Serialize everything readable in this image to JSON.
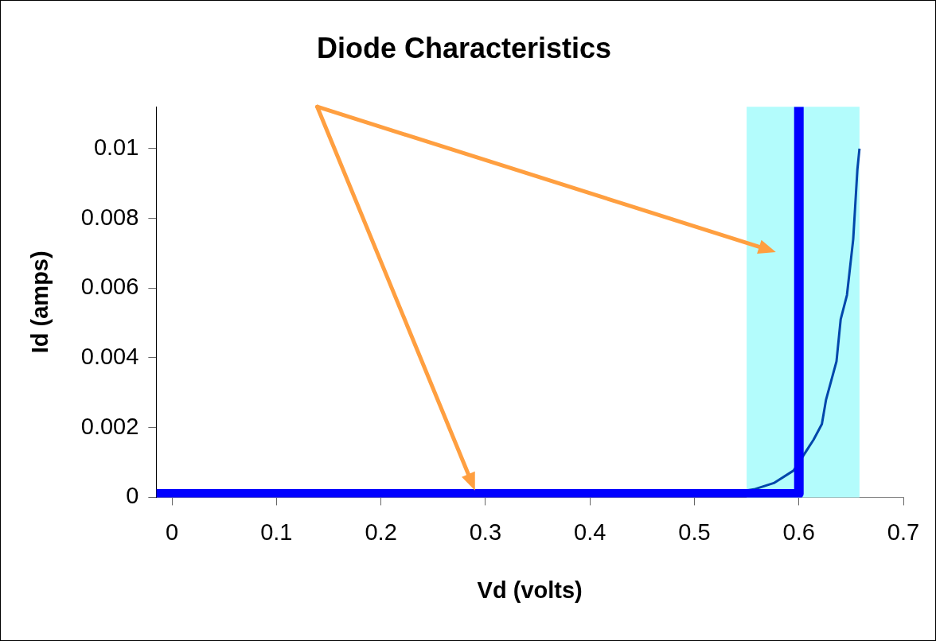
{
  "chart_data": {
    "type": "line",
    "title": "Diode Characteristics",
    "xlabel": "Vd (volts)",
    "ylabel": "Id (amps)",
    "series": [
      {
        "color": "#0000ff",
        "x": [
          -0.015,
          0.6,
          0.6
        ],
        "values": [
          0.0001,
          0.0001,
          0.0112
        ]
      },
      {
        "color": "#0047ab",
        "x": [
          0.53,
          0.557,
          0.576,
          0.595,
          0.614,
          0.622,
          0.626,
          0.636,
          0.64,
          0.646,
          0.652,
          0.656,
          0.658
        ],
        "values": [
          0.0001,
          0.00023,
          0.00041,
          0.00077,
          0.00165,
          0.0021,
          0.0028,
          0.0039,
          0.0051,
          0.0058,
          0.0074,
          0.0094,
          0.01
        ]
      }
    ],
    "bands": [
      {
        "axis": "x",
        "from": 0.55,
        "to": 0.658,
        "color": "#b3fcfc"
      }
    ],
    "xlim": [
      -0.015,
      0.7
    ],
    "xticks": [
      0,
      0.1,
      0.2,
      0.3,
      0.4,
      0.5,
      0.6,
      0.7
    ],
    "ylim": [
      0,
      0.0112
    ],
    "yticks": [
      0,
      0.002,
      0.004,
      0.006,
      0.008,
      0.01
    ],
    "grid": false,
    "legend": false,
    "marker": "none",
    "line_style": "solid"
  }
}
